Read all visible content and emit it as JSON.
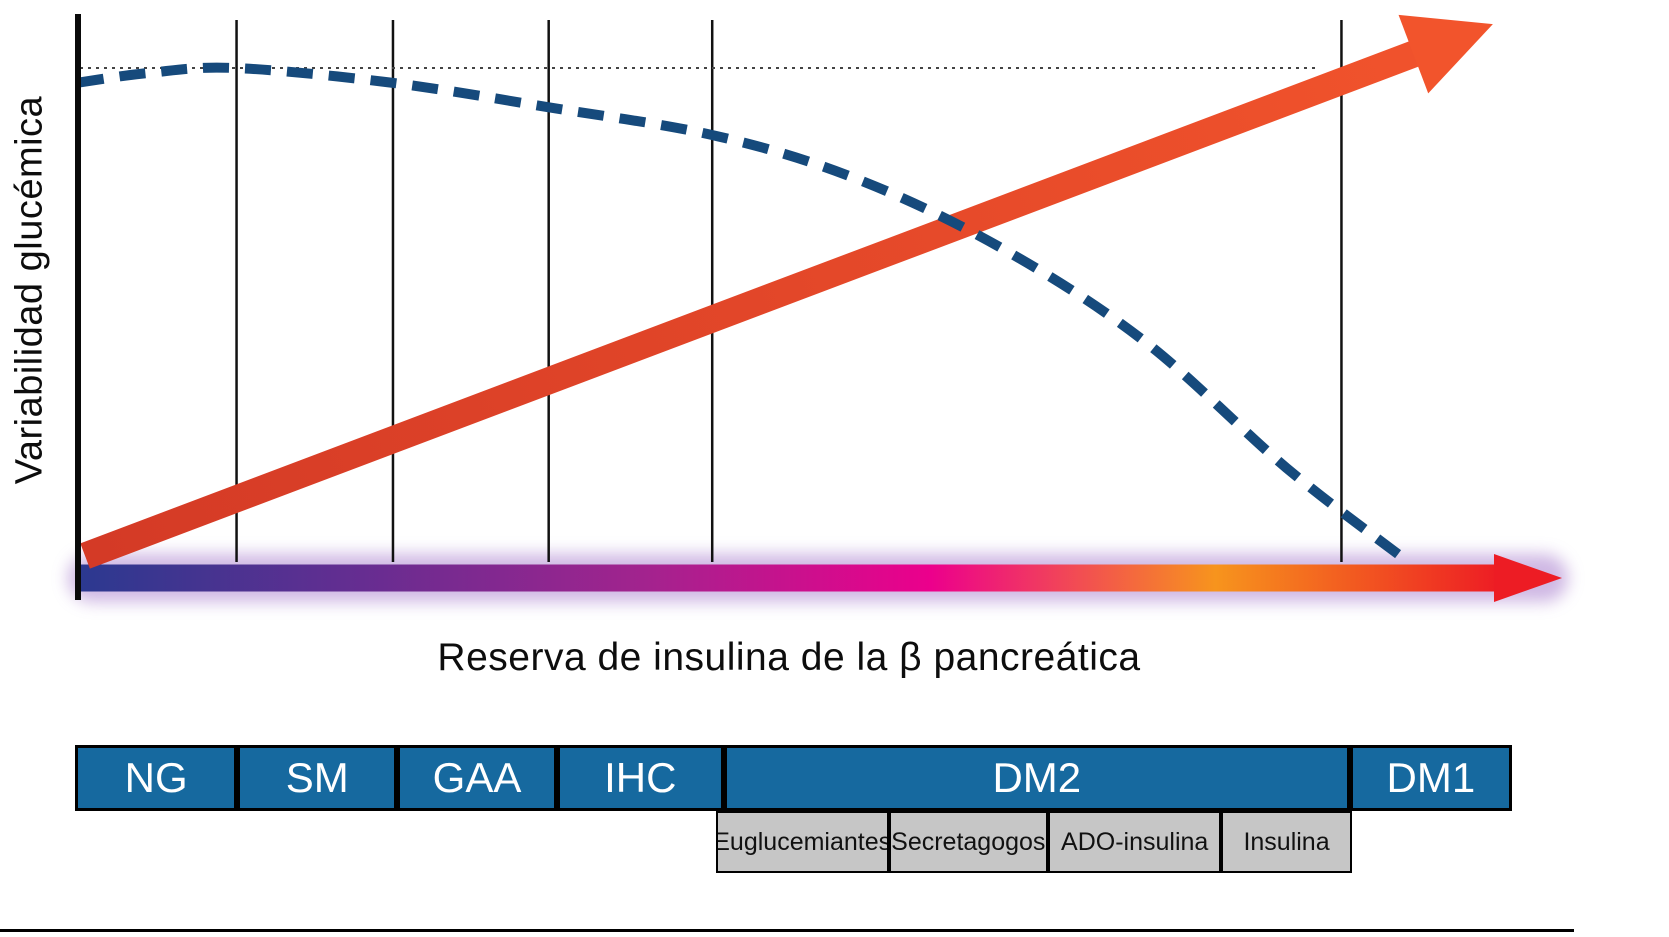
{
  "chart_data": {
    "type": "line",
    "title": "",
    "xlabel": "Reserva de insulina de la β pancreática",
    "ylabel": "Variabilidad glucémica",
    "x_range": [
      0,
      100
    ],
    "y_range": [
      0,
      100
    ],
    "grid": "vertical-stage-dividers",
    "legend": "none",
    "series": [
      {
        "name": "reserva-insulina-curva-discontinua",
        "style": "dashed",
        "color": "#164a7c",
        "x": [
          0,
          5,
          11,
          22,
          33,
          45,
          55,
          65,
          75,
          85,
          93
        ],
        "y": [
          97,
          99,
          100,
          97,
          92,
          86,
          77,
          63,
          44,
          18,
          0
        ]
      },
      {
        "name": "variabilidad-glucemica-flecha-ascendente",
        "style": "arrow",
        "color_start": "#d43a26",
        "color_end": "#f2542c",
        "x": [
          0.5,
          99.5
        ],
        "y": [
          0,
          109
        ]
      }
    ],
    "reference_line": {
      "style": "dotted",
      "y": 100,
      "x_end": 87,
      "color": "#444444"
    },
    "stage_boundaries_pct": [
      0,
      11.15,
      22.15,
      33.1,
      44.6,
      88.85,
      100
    ],
    "stages": [
      "NG",
      "SM",
      "GAA",
      "IHC",
      "DM2",
      "DM1"
    ],
    "gradient_axis_arrow": {
      "colors": [
        "#2b3990",
        "#662d91",
        "#a3238e",
        "#ec008c",
        "#f7941d",
        "#ed1c24"
      ],
      "glow_color": "#c3a6dd"
    }
  },
  "stage_table": {
    "stages": [
      {
        "label": "NG",
        "width_pct": 11.15
      },
      {
        "label": "SM",
        "width_pct": 11.0
      },
      {
        "label": "GAA",
        "width_pct": 10.95
      },
      {
        "label": "IHC",
        "width_pct": 11.5
      },
      {
        "label": "DM2",
        "width_pct": 44.25
      },
      {
        "label": "DM1",
        "width_pct": 11.15
      }
    ],
    "treatments": {
      "start_pct": 44.6,
      "width_pct": 44.25,
      "items": [
        {
          "label": "Euglucemiantes",
          "width_pct": 27.2
        },
        {
          "label": "Secretagogos",
          "width_pct": 25.1
        },
        {
          "label": "ADO-insulina",
          "width_pct": 27.3
        },
        {
          "label": "Insulina",
          "width_pct": 20.4
        }
      ]
    },
    "colors": {
      "stage_bg": "#16699f",
      "stage_text": "#ffffff",
      "treatment_bg": "#c6c6c6",
      "treatment_text": "#111111",
      "border": "#000000"
    }
  }
}
